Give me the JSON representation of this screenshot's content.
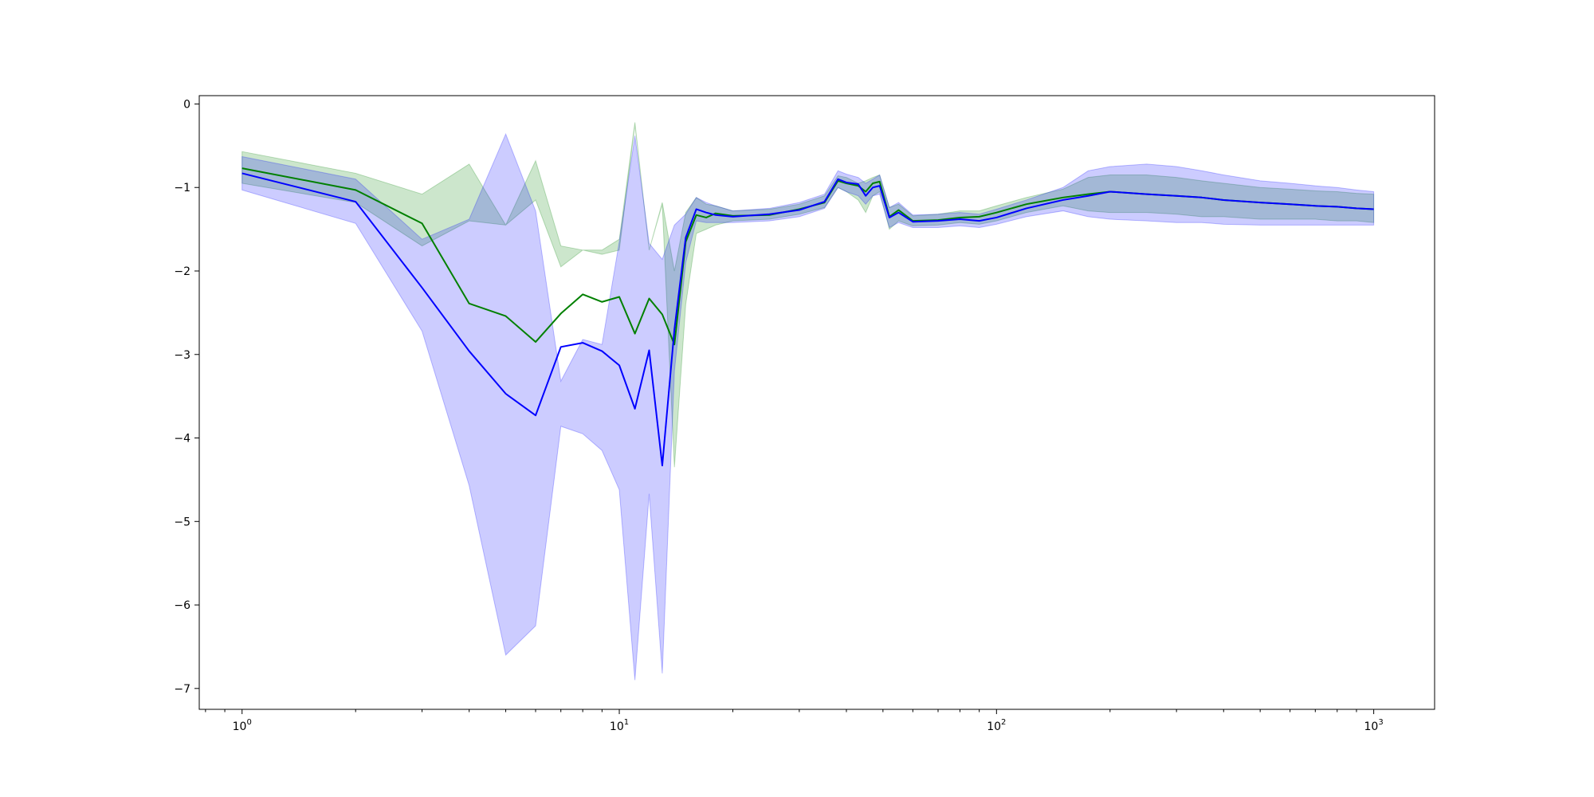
{
  "chart_data": {
    "type": "line",
    "title": "",
    "xlabel": "",
    "ylabel": "",
    "xscale": "log",
    "xlim": [
      0.77,
      1450
    ],
    "ylim": [
      -7.25,
      0.1
    ],
    "grid": false,
    "x_ticks": [
      {
        "value": 1,
        "base": "10",
        "exp": "0"
      },
      {
        "value": 10,
        "base": "10",
        "exp": "1"
      },
      {
        "value": 100,
        "base": "10",
        "exp": "2"
      },
      {
        "value": 1000,
        "base": "10",
        "exp": "3"
      }
    ],
    "y_ticks": [
      0,
      -1,
      -2,
      -3,
      -4,
      -5,
      -6,
      -7
    ],
    "series": [
      {
        "color": "#008000",
        "band_color": "#008000",
        "band_opacity": 0.2,
        "x": [
          1,
          2,
          3,
          4,
          5,
          6,
          7,
          8,
          9,
          10,
          11,
          12,
          13,
          14,
          15,
          16,
          17,
          18,
          20,
          25,
          30,
          35,
          38,
          40,
          43,
          45,
          47,
          49,
          52,
          55,
          60,
          70,
          80,
          90,
          100,
          120,
          150,
          175,
          200,
          250,
          300,
          350,
          400,
          500,
          600,
          700,
          800,
          900,
          1000
        ],
        "values": [
          -0.77,
          -1.03,
          -1.43,
          -2.39,
          -2.54,
          -2.85,
          -2.51,
          -2.28,
          -2.37,
          -2.31,
          -2.75,
          -2.33,
          -2.52,
          -2.88,
          -1.65,
          -1.33,
          -1.36,
          -1.31,
          -1.34,
          -1.33,
          -1.26,
          -1.18,
          -0.92,
          -0.95,
          -0.98,
          -1.05,
          -0.95,
          -0.93,
          -1.35,
          -1.27,
          -1.4,
          -1.39,
          -1.36,
          -1.35,
          -1.3,
          -1.2,
          -1.12,
          -1.08,
          -1.05,
          -1.08,
          -1.1,
          -1.12,
          -1.15,
          -1.18,
          -1.2,
          -1.22,
          -1.23,
          -1.25,
          -1.26
        ],
        "lower": [
          -0.95,
          -1.18,
          -1.7,
          -1.4,
          -1.45,
          -1.15,
          -1.95,
          -1.75,
          -1.8,
          -1.75,
          -0.25,
          -1.75,
          -1.2,
          -4.35,
          -2.4,
          -1.55,
          -1.5,
          -1.45,
          -1.4,
          -1.38,
          -1.32,
          -1.24,
          -1.0,
          -1.05,
          -1.15,
          -1.3,
          -1.1,
          -1.05,
          -1.5,
          -1.4,
          -1.46,
          -1.45,
          -1.42,
          -1.44,
          -1.4,
          -1.3,
          -1.22,
          -1.28,
          -1.3,
          -1.3,
          -1.32,
          -1.35,
          -1.35,
          -1.38,
          -1.38,
          -1.38,
          -1.4,
          -1.4,
          -1.42
        ],
        "upper": [
          -0.57,
          -0.83,
          -1.08,
          -0.72,
          -1.45,
          -0.68,
          -1.7,
          -1.75,
          -1.75,
          -1.62,
          -0.22,
          -1.75,
          -1.18,
          -2.0,
          -1.3,
          -1.12,
          -1.2,
          -1.22,
          -1.28,
          -1.26,
          -1.2,
          -1.1,
          -0.86,
          -0.88,
          -0.95,
          -0.92,
          -0.88,
          -0.85,
          -1.24,
          -1.2,
          -1.34,
          -1.32,
          -1.28,
          -1.28,
          -1.22,
          -1.12,
          -1.02,
          -0.88,
          -0.85,
          -0.85,
          -0.88,
          -0.92,
          -0.95,
          -1.0,
          -1.02,
          -1.04,
          -1.05,
          -1.07,
          -1.08
        ]
      },
      {
        "color": "#0000ff",
        "band_color": "#0000ff",
        "band_opacity": 0.2,
        "x": [
          1,
          2,
          3,
          4,
          5,
          6,
          7,
          8,
          9,
          10,
          11,
          12,
          13,
          14,
          15,
          16,
          17,
          18,
          20,
          25,
          30,
          35,
          38,
          40,
          43,
          45,
          47,
          49,
          52,
          55,
          60,
          70,
          80,
          90,
          100,
          120,
          150,
          175,
          200,
          250,
          300,
          350,
          400,
          500,
          600,
          700,
          800,
          900,
          1000
        ],
        "values": [
          -0.83,
          -1.17,
          -2.2,
          -2.96,
          -3.47,
          -3.73,
          -2.91,
          -2.86,
          -2.96,
          -3.13,
          -3.65,
          -2.95,
          -4.33,
          -2.7,
          -1.6,
          -1.26,
          -1.3,
          -1.33,
          -1.35,
          -1.32,
          -1.27,
          -1.17,
          -0.9,
          -0.94,
          -0.96,
          -1.1,
          -1.0,
          -0.98,
          -1.36,
          -1.3,
          -1.41,
          -1.4,
          -1.38,
          -1.4,
          -1.36,
          -1.25,
          -1.15,
          -1.1,
          -1.05,
          -1.08,
          -1.1,
          -1.12,
          -1.15,
          -1.18,
          -1.2,
          -1.22,
          -1.23,
          -1.25,
          -1.26
        ],
        "lower": [
          -1.03,
          -1.43,
          -2.72,
          -4.57,
          -6.6,
          -6.25,
          -3.86,
          -3.95,
          -4.15,
          -4.62,
          -6.9,
          -4.67,
          -6.82,
          -3.2,
          -1.9,
          -1.4,
          -1.42,
          -1.42,
          -1.42,
          -1.4,
          -1.35,
          -1.25,
          -1.0,
          -1.05,
          -1.1,
          -1.2,
          -1.1,
          -1.08,
          -1.48,
          -1.42,
          -1.48,
          -1.48,
          -1.46,
          -1.48,
          -1.44,
          -1.35,
          -1.28,
          -1.35,
          -1.38,
          -1.4,
          -1.42,
          -1.42,
          -1.44,
          -1.45,
          -1.45,
          -1.45,
          -1.45,
          -1.45,
          -1.45
        ],
        "upper": [
          -0.63,
          -0.9,
          -1.62,
          -1.38,
          -0.36,
          -1.28,
          -3.32,
          -2.82,
          -2.88,
          -1.65,
          -0.38,
          -1.67,
          -1.86,
          -1.45,
          -1.32,
          -1.12,
          -1.18,
          -1.22,
          -1.28,
          -1.25,
          -1.18,
          -1.08,
          -0.8,
          -0.84,
          -0.88,
          -0.95,
          -0.9,
          -0.85,
          -1.24,
          -1.18,
          -1.33,
          -1.32,
          -1.3,
          -1.32,
          -1.26,
          -1.15,
          -1.0,
          -0.8,
          -0.75,
          -0.72,
          -0.75,
          -0.8,
          -0.85,
          -0.92,
          -0.95,
          -0.98,
          -1.0,
          -1.03,
          -1.05
        ]
      }
    ]
  }
}
